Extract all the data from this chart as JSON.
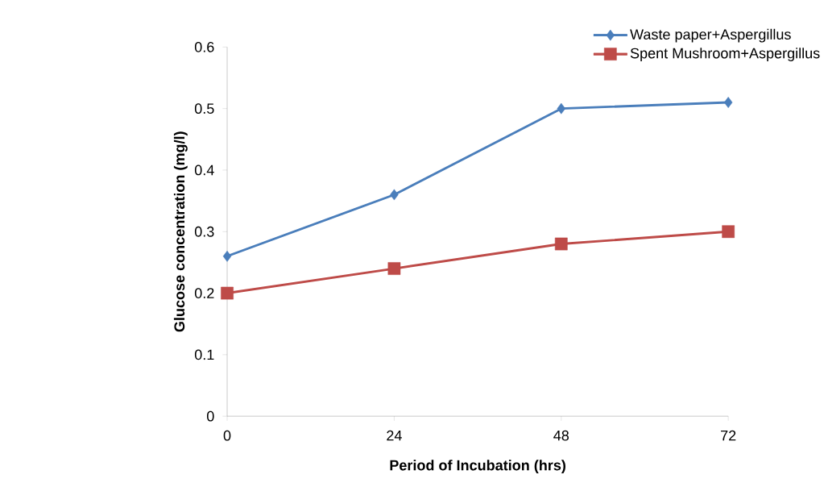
{
  "chart_data": {
    "type": "line",
    "xlabel": "Period of Incubation (hrs)",
    "ylabel": "Glucose concentration (mg/l)",
    "categories": [
      "0",
      "24",
      "48",
      "72"
    ],
    "series": [
      {
        "name": "Waste paper+Aspergillus",
        "color": "#4a7ebb",
        "marker": "diamond",
        "values": [
          0.26,
          0.36,
          0.5,
          0.51
        ]
      },
      {
        "name": "Spent Mushroom+Aspergillus",
        "color": "#be4b48",
        "marker": "square",
        "values": [
          0.2,
          0.24,
          0.28,
          0.3
        ]
      }
    ],
    "ylim": [
      0,
      0.6
    ],
    "yticks": [
      0,
      0.1,
      0.2,
      0.3,
      0.4,
      0.5,
      0.6
    ],
    "grid": false,
    "legend": "top right",
    "line_style": "solid"
  }
}
